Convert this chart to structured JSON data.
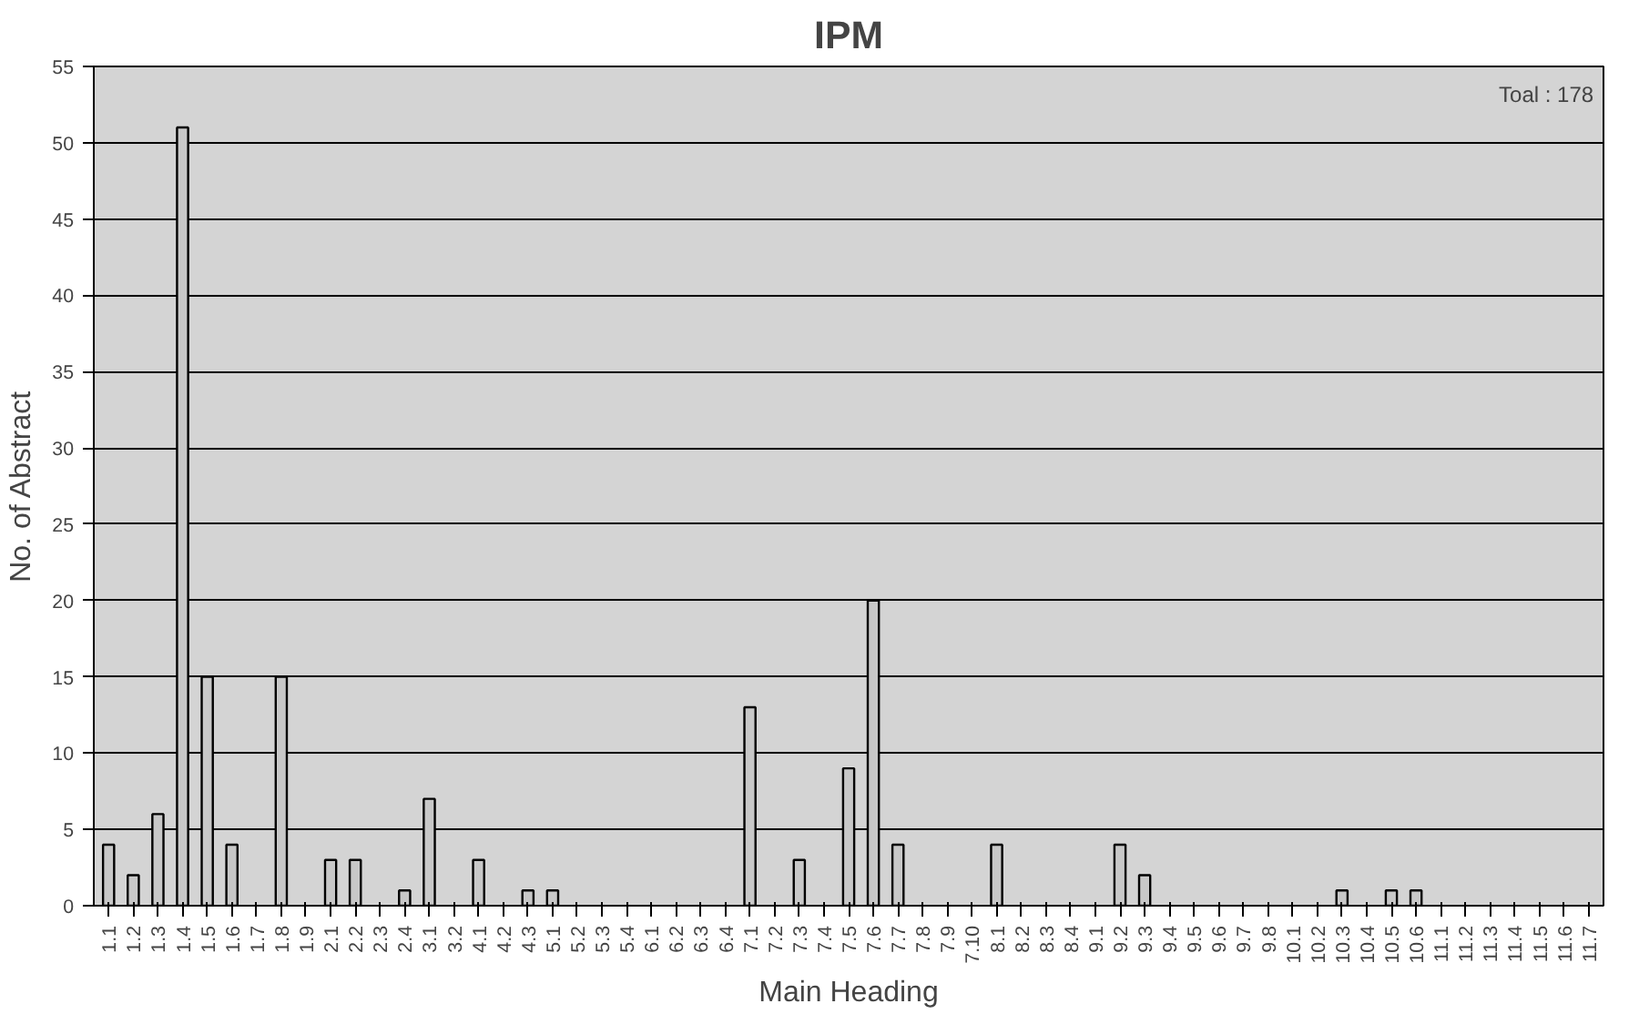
{
  "chart_data": {
    "type": "bar",
    "title": "IPM",
    "xlabel": "Main Heading",
    "ylabel": "No. of Abstract",
    "categories": [
      "1.1",
      "1.2",
      "1.3",
      "1.4",
      "1.5",
      "1.6",
      "1.7",
      "1.8",
      "1.9",
      "2.1",
      "2.2",
      "2.3",
      "2.4",
      "3.1",
      "3.2",
      "4.1",
      "4.2",
      "4.3",
      "5.1",
      "5.2",
      "5.3",
      "5.4",
      "6.1",
      "6.2",
      "6.3",
      "6.4",
      "7.1",
      "7.2",
      "7.3",
      "7.4",
      "7.5",
      "7.6",
      "7.7",
      "7.8",
      "7.9",
      "7.10",
      "8.1",
      "8.2",
      "8.3",
      "8.4",
      "9.1",
      "9.2",
      "9.3",
      "9.4",
      "9.5",
      "9.6",
      "9.7",
      "9.8",
      "10.1",
      "10.2",
      "10.3",
      "10.4",
      "10.5",
      "10.6",
      "11.1",
      "11.2",
      "11.3",
      "11.4",
      "11.5",
      "11.6",
      "11.7"
    ],
    "values": [
      4,
      2,
      6,
      51,
      15,
      4,
      0,
      15,
      0,
      3,
      3,
      0,
      1,
      7,
      0,
      3,
      0,
      1,
      1,
      0,
      0,
      0,
      0,
      0,
      0,
      0,
      13,
      0,
      3,
      0,
      9,
      20,
      4,
      0,
      0,
      0,
      4,
      0,
      0,
      0,
      0,
      4,
      2,
      0,
      0,
      0,
      0,
      0,
      0,
      0,
      1,
      0,
      1,
      1,
      0,
      0,
      0,
      0,
      0,
      0,
      0
    ],
    "color": "#c8c8c8",
    "ylim": [
      0,
      55
    ],
    "yticks": [
      0,
      5,
      10,
      15,
      20,
      25,
      30,
      35,
      40,
      45,
      50,
      55
    ],
    "grid": "y",
    "annotations": [
      "Toal : 178"
    ]
  }
}
